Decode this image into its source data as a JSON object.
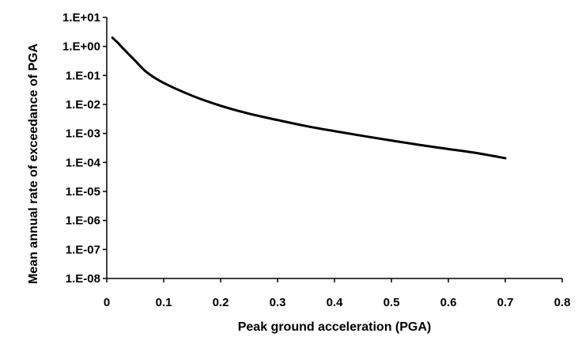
{
  "chart_data": {
    "type": "line",
    "title": "",
    "xlabel": "Peak ground acceleration (PGA)",
    "ylabel": "Mean annual rate of exceedance of PGA",
    "xlim": [
      0,
      0.8
    ],
    "ylim": [
      1e-08,
      10
    ],
    "yscale": "log",
    "grid": false,
    "legend": "none",
    "x_ticks": [
      "0",
      "0.1",
      "0.2",
      "0.3",
      "0.4",
      "0.5",
      "0.6",
      "0.7",
      "0.8"
    ],
    "y_ticks": [
      "1.E-08",
      "1.E-07",
      "1.E-06",
      "1.E-05",
      "1.E-04",
      "1.E-03",
      "1.E-02",
      "1.E-01",
      "1.E+00",
      "1.E+01"
    ],
    "line_color": "#000000",
    "series": [
      {
        "x": [
          0.01,
          0.02,
          0.03,
          0.05,
          0.07,
          0.1,
          0.15,
          0.2,
          0.25,
          0.3,
          0.35,
          0.4,
          0.45,
          0.5,
          0.55,
          0.6,
          0.65,
          0.7
        ],
        "y": [
          2.0,
          1.3,
          0.8,
          0.32,
          0.13,
          0.055,
          0.02,
          0.009,
          0.0048,
          0.0029,
          0.0018,
          0.0012,
          0.00082,
          0.00057,
          0.0004,
          0.00029,
          0.00021,
          0.00014
        ]
      }
    ]
  }
}
